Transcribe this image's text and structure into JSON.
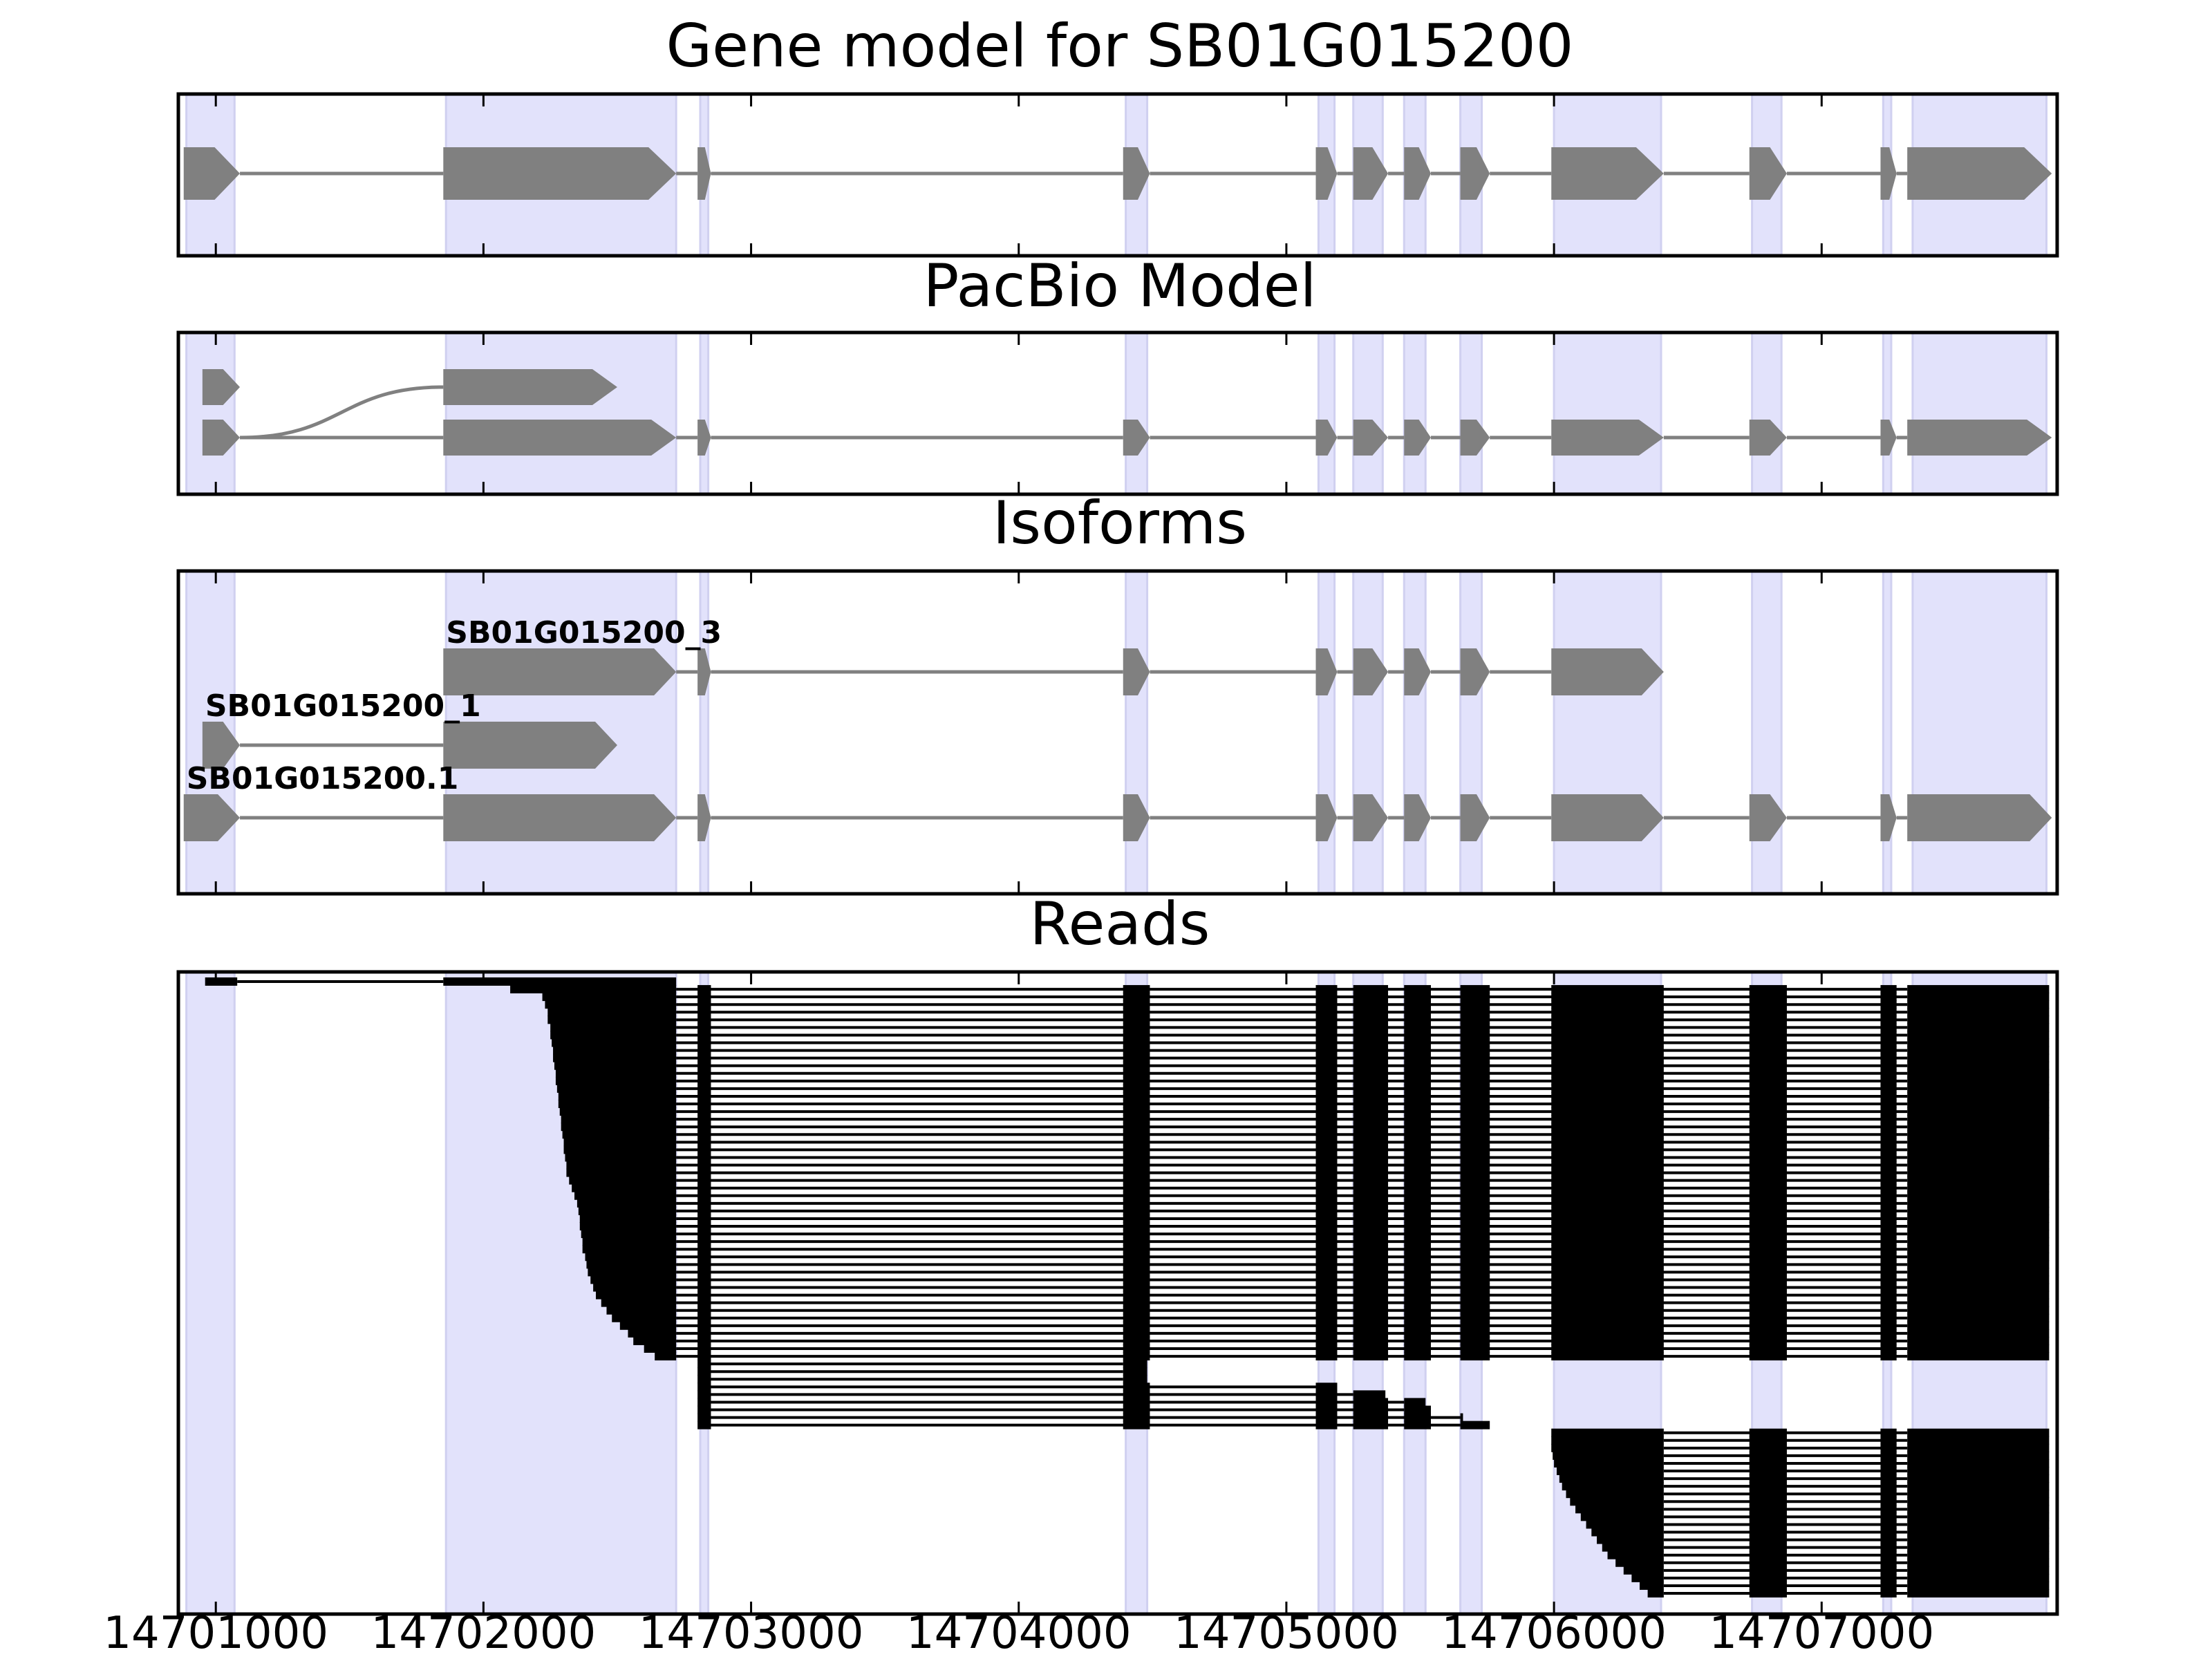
{
  "figure": {
    "panel_titles": [
      "Gene model for SB01G015200",
      "PacBio Model",
      "Isoforms",
      "Reads"
    ],
    "x_tick_labels": [
      "14701000",
      "14702000",
      "14703000",
      "14704000",
      "14705000",
      "14706000",
      "14707000"
    ]
  },
  "colors": {
    "highlight": "#e2e2fb",
    "highlight_edge": "#d0d0f0",
    "feature": "#808080",
    "read": "#000000",
    "axis": "#000000"
  },
  "chart_data": {
    "type": "gene-track",
    "xlim": [
      14700860,
      14707880
    ],
    "x_ticks": [
      14701000,
      14702000,
      14703000,
      14704000,
      14705000,
      14706000,
      14707000
    ],
    "grid": false,
    "highlight_regions": [
      [
        14700890,
        14701070
      ],
      [
        14701860,
        14702720
      ],
      [
        14702810,
        14702840
      ],
      [
        14704400,
        14704480
      ],
      [
        14705120,
        14705180
      ],
      [
        14705250,
        14705360
      ],
      [
        14705440,
        14705520
      ],
      [
        14705650,
        14705730
      ],
      [
        14706000,
        14706400
      ],
      [
        14706740,
        14706850
      ],
      [
        14707230,
        14707260
      ],
      [
        14707340,
        14707840
      ]
    ],
    "gene_model": [
      {
        "exons": [
          [
            14700880,
            14701090
          ],
          [
            14701850,
            14702720
          ],
          [
            14702800,
            14702850
          ],
          [
            14704390,
            14704490
          ],
          [
            14705110,
            14705190
          ],
          [
            14705250,
            14705380
          ],
          [
            14705440,
            14705540
          ],
          [
            14705650,
            14705760
          ],
          [
            14705990,
            14706410
          ],
          [
            14706730,
            14706870
          ],
          [
            14707220,
            14707280
          ],
          [
            14707320,
            14707860
          ]
        ]
      }
    ],
    "pacbio_model": [
      {
        "exons": [
          [
            14700950,
            14701090
          ],
          [
            14701850,
            14702500
          ]
        ],
        "curved_first_intron": true
      },
      {
        "exons": [
          [
            14700950,
            14701090
          ],
          [
            14701850,
            14702720
          ],
          [
            14702800,
            14702850
          ],
          [
            14704390,
            14704490
          ],
          [
            14705110,
            14705190
          ],
          [
            14705250,
            14705380
          ],
          [
            14705440,
            14705540
          ],
          [
            14705650,
            14705760
          ],
          [
            14705990,
            14706410
          ],
          [
            14706730,
            14706870
          ],
          [
            14707220,
            14707280
          ],
          [
            14707320,
            14707860
          ]
        ]
      }
    ],
    "isoforms": [
      {
        "name": "SB01G015200_3",
        "exons": [
          [
            14701850,
            14702720
          ],
          [
            14702800,
            14702850
          ],
          [
            14704390,
            14704490
          ],
          [
            14705110,
            14705190
          ],
          [
            14705250,
            14705380
          ],
          [
            14705440,
            14705540
          ],
          [
            14705650,
            14705760
          ],
          [
            14705990,
            14706410
          ]
        ]
      },
      {
        "name": "SB01G015200_1",
        "exons": [
          [
            14700950,
            14701090
          ],
          [
            14701850,
            14702500
          ]
        ]
      },
      {
        "name": "SB01G015200.1",
        "exons": [
          [
            14700880,
            14701090
          ],
          [
            14701850,
            14702720
          ],
          [
            14702800,
            14702850
          ],
          [
            14704390,
            14704490
          ],
          [
            14705110,
            14705190
          ],
          [
            14705250,
            14705380
          ],
          [
            14705440,
            14705540
          ],
          [
            14705650,
            14705760
          ],
          [
            14705990,
            14706410
          ],
          [
            14706730,
            14706870
          ],
          [
            14707220,
            14707280
          ],
          [
            14707320,
            14707860
          ]
        ]
      }
    ],
    "reads": {
      "exon_blocks": [
        [
          14701850,
          14702720
        ],
        [
          14702800,
          14702850
        ],
        [
          14704390,
          14704490
        ],
        [
          14705110,
          14705190
        ],
        [
          14705250,
          14705380
        ],
        [
          14705440,
          14705540
        ],
        [
          14705650,
          14705760
        ],
        [
          14705990,
          14706410
        ],
        [
          14706730,
          14706870
        ],
        [
          14707220,
          14707280
        ],
        [
          14707320,
          14707850
        ]
      ],
      "first_read_exons": [
        [
          14700960,
          14701080
        ],
        [
          14701850,
          14702720
        ]
      ],
      "group_a_starts": [
        14702100,
        14702220,
        14702230,
        14702240,
        14702240,
        14702250,
        14702250,
        14702255,
        14702260,
        14702260,
        14702265,
        14702270,
        14702270,
        14702275,
        14702280,
        14702280,
        14702285,
        14702290,
        14702290,
        14702295,
        14702300,
        14702300,
        14702305,
        14702310,
        14702310,
        14702320,
        14702330,
        14702340,
        14702350,
        14702355,
        14702360,
        14702360,
        14702365,
        14702370,
        14702370,
        14702380,
        14702385,
        14702390,
        14702400,
        14702410,
        14702420,
        14702440,
        14702460,
        14702480,
        14702510,
        14702540,
        14702560,
        14702600,
        14702640
      ],
      "group_b_stops": [
        14704480,
        14704480,
        14704480,
        14705200,
        14705370,
        14705520,
        14705540,
        14705660,
        14705760
      ],
      "group_c_starts": [
        14705950,
        14705970,
        14705985,
        14705995,
        14706000,
        14706010,
        14706020,
        14706030,
        14706045,
        14706060,
        14706080,
        14706100,
        14706120,
        14706140,
        14706160,
        14706180,
        14706200,
        14706230,
        14706260,
        14706290,
        14706320,
        14706350
      ]
    }
  }
}
